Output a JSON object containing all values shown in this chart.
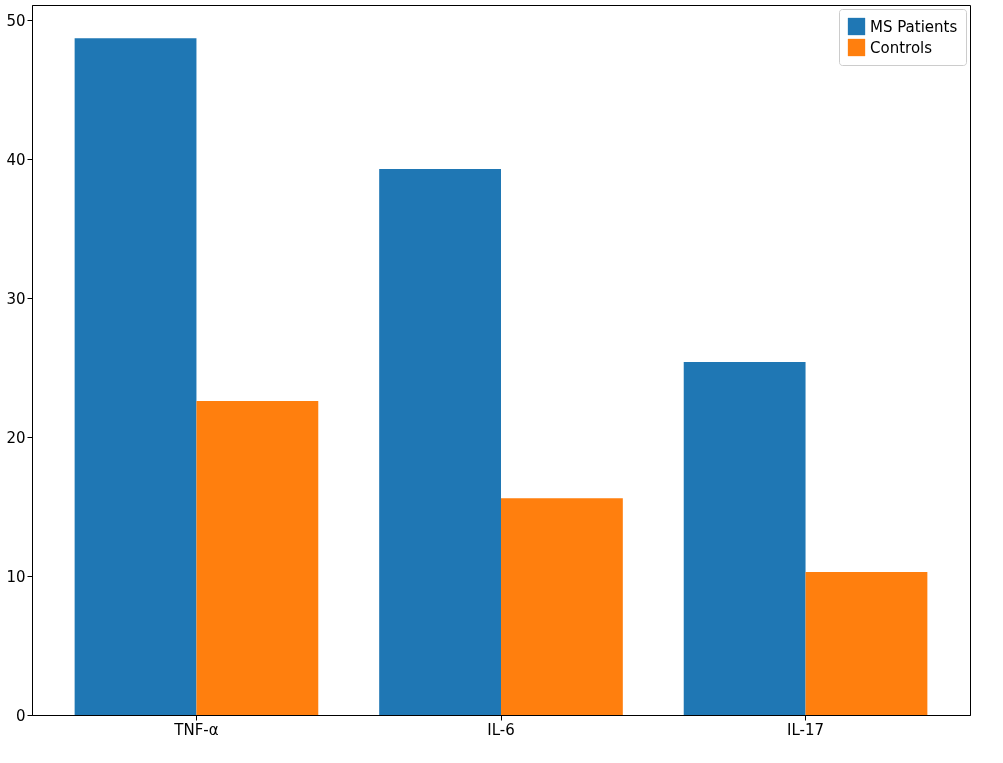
{
  "chart_data": {
    "type": "bar",
    "categories": [
      "TNF-α",
      "IL-6",
      "IL-17"
    ],
    "series": [
      {
        "name": "MS Patients",
        "color": "#1f77b4",
        "values": [
          48.7,
          39.3,
          25.4
        ]
      },
      {
        "name": "Controls",
        "color": "#ff7f0e",
        "values": [
          22.6,
          15.6,
          10.3
        ]
      }
    ],
    "ylim": [
      0,
      51.1
    ],
    "yticks": [
      0,
      10,
      20,
      30,
      40,
      50
    ],
    "grid": false,
    "legend": "top right"
  }
}
